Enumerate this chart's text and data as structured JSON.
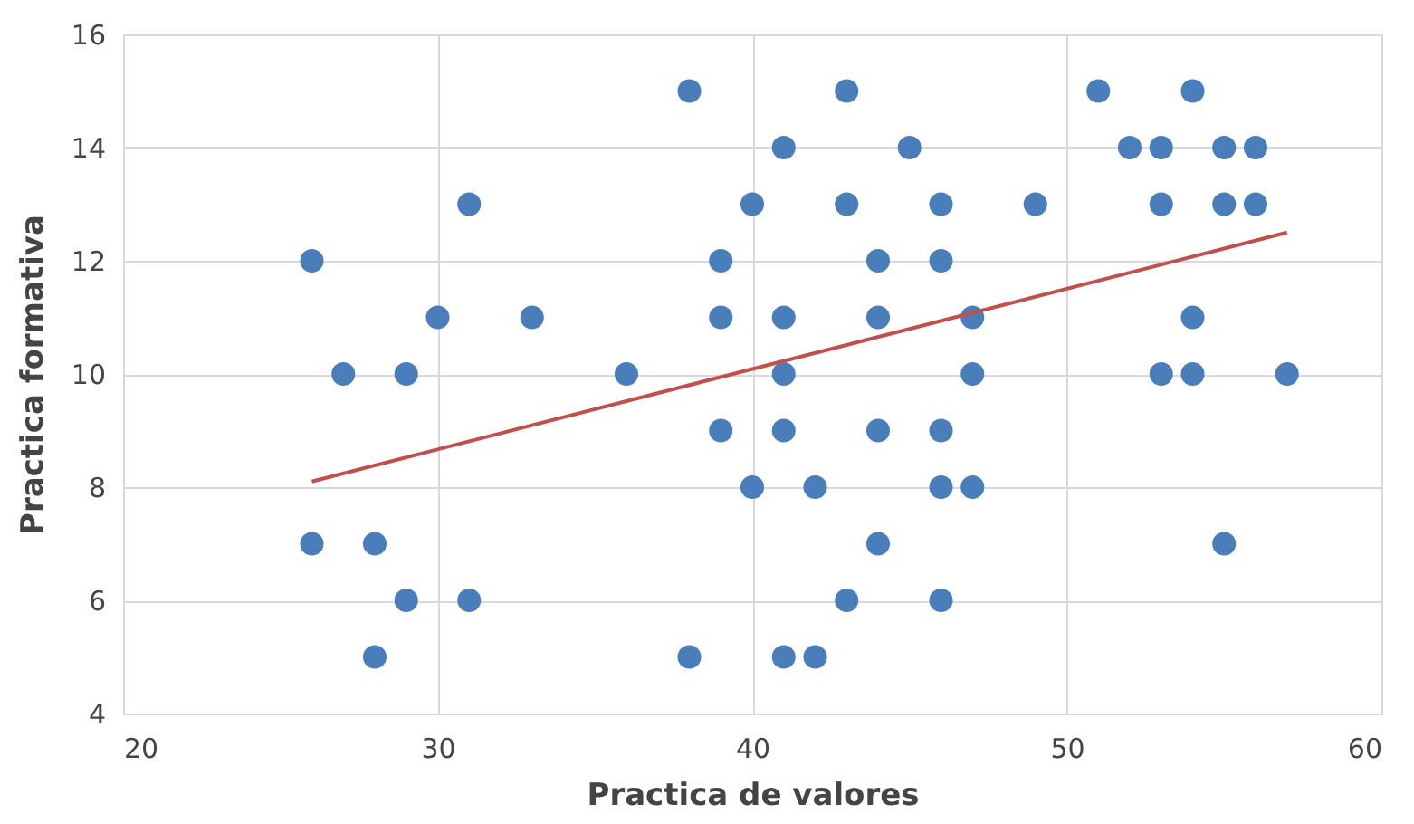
{
  "chart_data": {
    "type": "scatter",
    "xlabel": "Practica de valores",
    "ylabel": "Practica formativa",
    "xlim": [
      20,
      60
    ],
    "xticks": [
      20,
      30,
      40,
      50,
      60
    ],
    "ylim": [
      4,
      16
    ],
    "yticks": [
      4,
      6,
      8,
      10,
      12,
      14,
      16
    ],
    "grid": true,
    "marker": "circle",
    "series": [
      {
        "color": "#4a7ebb",
        "x": [
          38,
          43,
          51,
          54,
          41,
          45,
          52,
          53,
          55,
          56,
          31,
          40,
          43,
          46,
          49,
          53,
          55,
          56,
          26,
          39,
          44,
          46,
          30,
          33,
          39,
          41,
          44,
          47,
          54,
          27,
          29,
          36,
          41,
          47,
          53,
          54,
          57,
          39,
          41,
          44,
          46,
          40,
          42,
          46,
          47,
          26,
          28,
          44,
          55,
          29,
          31,
          43,
          46,
          28,
          38,
          41,
          42
        ],
        "values": [
          15,
          15,
          15,
          15,
          14,
          14,
          14,
          14,
          14,
          14,
          13,
          13,
          13,
          13,
          13,
          13,
          13,
          13,
          12,
          12,
          12,
          12,
          11,
          11,
          11,
          11,
          11,
          11,
          11,
          10,
          10,
          10,
          10,
          10,
          10,
          10,
          10,
          9,
          9,
          9,
          9,
          8,
          8,
          8,
          8,
          7,
          7,
          7,
          7,
          6,
          6,
          6,
          6,
          5,
          5,
          5,
          5
        ]
      },
      {
        "type": "line",
        "color": "#c0504d",
        "line_style": "solid",
        "marker": "none",
        "x": [
          26,
          57
        ],
        "values": [
          8.1,
          12.5
        ]
      }
    ]
  }
}
